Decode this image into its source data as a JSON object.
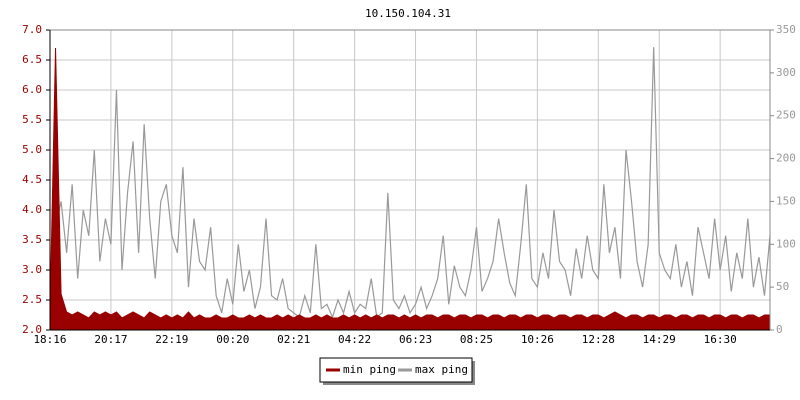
{
  "chart_data": {
    "type": "line",
    "title": "10.150.104.31",
    "categories": [
      "18:16",
      null,
      null,
      null,
      null,
      null,
      null,
      null,
      null,
      null,
      null,
      "20:17",
      null,
      null,
      null,
      null,
      null,
      null,
      null,
      null,
      null,
      null,
      "22:19",
      null,
      null,
      null,
      null,
      null,
      null,
      null,
      null,
      null,
      null,
      "00:20",
      null,
      null,
      null,
      null,
      null,
      null,
      null,
      null,
      null,
      null,
      "02:21",
      null,
      null,
      null,
      null,
      null,
      null,
      null,
      null,
      null,
      null,
      "04:22",
      null,
      null,
      null,
      null,
      null,
      null,
      null,
      null,
      null,
      null,
      "06:23",
      null,
      null,
      null,
      null,
      null,
      null,
      null,
      null,
      null,
      null,
      "08:25",
      null,
      null,
      null,
      null,
      null,
      null,
      null,
      null,
      null,
      null,
      "10:26",
      null,
      null,
      null,
      null,
      null,
      null,
      null,
      null,
      null,
      null,
      "12:28",
      null,
      null,
      null,
      null,
      null,
      null,
      null,
      null,
      null,
      null,
      "14:29",
      null,
      null,
      null,
      null,
      null,
      null,
      null,
      null,
      null,
      null,
      "16:30",
      null,
      null,
      null,
      null,
      null,
      null,
      null,
      null,
      null
    ],
    "series": [
      {
        "name": "min ping",
        "color": "#990000",
        "fill": "area",
        "values": [
          2.3,
          6.7,
          2.6,
          2.3,
          2.25,
          2.3,
          2.25,
          2.2,
          2.3,
          2.25,
          2.3,
          2.25,
          2.3,
          2.2,
          2.25,
          2.3,
          2.25,
          2.2,
          2.3,
          2.25,
          2.2,
          2.25,
          2.2,
          2.25,
          2.2,
          2.3,
          2.2,
          2.25,
          2.2,
          2.2,
          2.25,
          2.2,
          2.2,
          2.25,
          2.2,
          2.2,
          2.25,
          2.2,
          2.25,
          2.2,
          2.2,
          2.25,
          2.2,
          2.25,
          2.2,
          2.25,
          2.2,
          2.2,
          2.25,
          2.2,
          2.25,
          2.2,
          2.2,
          2.25,
          2.2,
          2.25,
          2.2,
          2.25,
          2.2,
          2.25,
          2.2,
          2.25,
          2.25,
          2.2,
          2.25,
          2.2,
          2.25,
          2.2,
          2.25,
          2.25,
          2.2,
          2.25,
          2.25,
          2.2,
          2.25,
          2.25,
          2.2,
          2.25,
          2.25,
          2.2,
          2.25,
          2.25,
          2.2,
          2.25,
          2.25,
          2.2,
          2.25,
          2.25,
          2.2,
          2.25,
          2.25,
          2.2,
          2.25,
          2.25,
          2.2,
          2.25,
          2.25,
          2.2,
          2.25,
          2.25,
          2.2,
          2.25,
          2.3,
          2.25,
          2.2,
          2.25,
          2.25,
          2.2,
          2.25,
          2.25,
          2.2,
          2.25,
          2.25,
          2.2,
          2.25,
          2.25,
          2.2,
          2.25,
          2.25,
          2.2,
          2.25,
          2.25,
          2.2,
          2.25,
          2.25,
          2.2,
          2.25,
          2.25,
          2.2,
          2.25,
          2.25
        ]
      },
      {
        "name": "max ping",
        "color": "#999999",
        "axis": "y2",
        "values": [
          40,
          120,
          150,
          90,
          170,
          60,
          140,
          110,
          210,
          80,
          130,
          100,
          280,
          70,
          160,
          220,
          90,
          240,
          130,
          60,
          150,
          170,
          110,
          90,
          190,
          50,
          130,
          80,
          70,
          120,
          40,
          20,
          60,
          30,
          100,
          45,
          70,
          25,
          50,
          130,
          40,
          35,
          60,
          25,
          20,
          15,
          40,
          20,
          100,
          25,
          30,
          15,
          35,
          20,
          45,
          20,
          30,
          25,
          60,
          15,
          20,
          160,
          35,
          25,
          40,
          20,
          30,
          50,
          25,
          40,
          60,
          110,
          30,
          75,
          50,
          40,
          70,
          120,
          45,
          60,
          80,
          130,
          90,
          55,
          40,
          100,
          170,
          60,
          50,
          90,
          60,
          140,
          80,
          70,
          40,
          95,
          60,
          110,
          70,
          60,
          170,
          90,
          120,
          60,
          210,
          150,
          80,
          50,
          100,
          330,
          90,
          70,
          60,
          100,
          50,
          80,
          40,
          120,
          90,
          60,
          130,
          70,
          110,
          45,
          90,
          60,
          130,
          50,
          85,
          40,
          110
        ]
      }
    ],
    "ylim": [
      2,
      7
    ],
    "yticks": [
      {
        "value": 2,
        "label": "2.0"
      },
      2.5,
      {
        "value": 3,
        "label": "3.0"
      },
      3.5,
      {
        "value": 4,
        "label": "4.0"
      },
      4.5,
      {
        "value": 5,
        "label": "5.0"
      },
      5.5,
      {
        "value": 6,
        "label": "6.0"
      },
      6.5,
      {
        "value": 7,
        "label": "7.0"
      }
    ],
    "y2lim": [
      0,
      350
    ],
    "y2ticks": [
      0,
      50,
      100,
      150,
      200,
      250,
      300,
      350
    ],
    "grid": true,
    "legend": "bottom"
  }
}
